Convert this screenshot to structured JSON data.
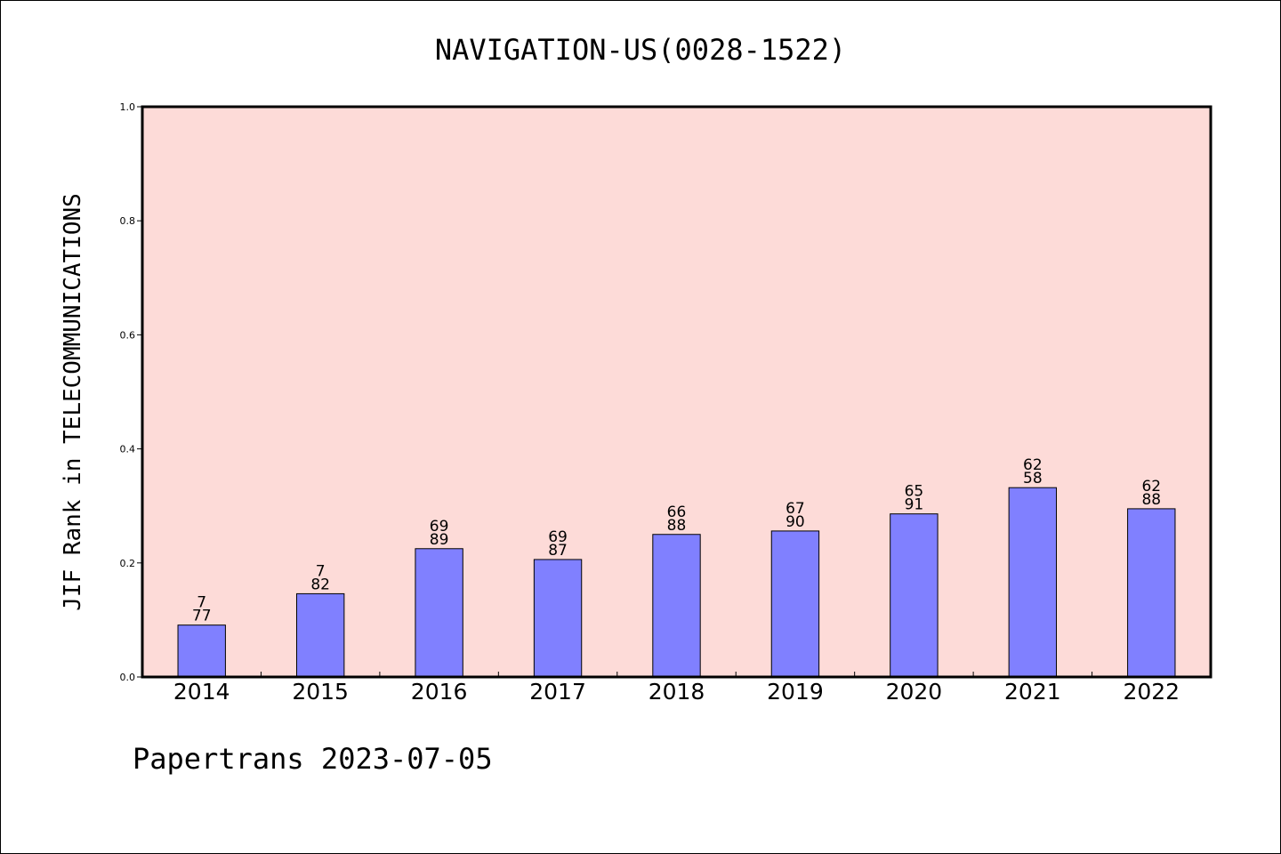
{
  "chart_data": {
    "type": "bar",
    "title": "NAVIGATION-US(0028-1522)",
    "ylabel": "JIF Rank in TELECOMMUNICATIONS",
    "xlabel": "",
    "categories": [
      "2014",
      "2015",
      "2016",
      "2017",
      "2018",
      "2019",
      "2020",
      "2021",
      "2022"
    ],
    "values": [
      0.091,
      0.146,
      0.225,
      0.206,
      0.25,
      0.256,
      0.286,
      0.332,
      0.295
    ],
    "ranks": [
      "7",
      "7",
      "69",
      "69",
      "66",
      "67",
      "65",
      "62",
      "62"
    ],
    "totals": [
      "77",
      "82",
      "89",
      "87",
      "88",
      "90",
      "91",
      "58",
      "88"
    ],
    "ylim": [
      0,
      1.0
    ],
    "yticks": [
      "0.0",
      "0.2",
      "0.4",
      "0.6",
      "0.8",
      "1.0"
    ],
    "grid": false,
    "legend": "none",
    "colors": {
      "bar": "#8080ff",
      "plot_background": "#fddbd8",
      "axis": "#000000"
    }
  },
  "footer": {
    "text": "Papertrans 2023-07-05"
  }
}
